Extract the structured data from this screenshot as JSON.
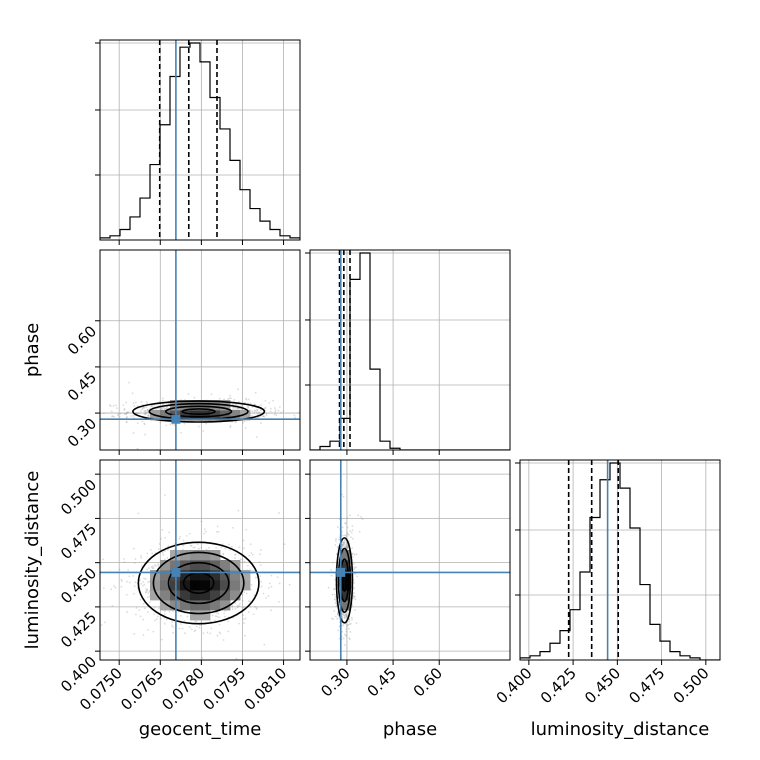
{
  "chart_data": {
    "type": "corner",
    "parameters": [
      "geocent_time",
      "phase",
      "luminosity_distance"
    ],
    "axis_labels": {
      "geocent_time": "geocent_time",
      "phase": "phase",
      "luminosity_distance": "luminosity_distance"
    },
    "ranges": {
      "geocent_time": [
        0.0743,
        0.0816
      ],
      "phase": [
        0.18,
        0.83
      ],
      "luminosity_distance": [
        0.395,
        0.508
      ]
    },
    "ticks": {
      "geocent_time": [
        "0.0750",
        "0.0765",
        "0.0780",
        "0.0795",
        "0.0810"
      ],
      "phase": [
        "0.30",
        "0.45",
        "0.60"
      ],
      "luminosity_distance": [
        "0.400",
        "0.425",
        "0.450",
        "0.475",
        "0.500"
      ]
    },
    "truths": {
      "geocent_time": 0.07707,
      "phase": 0.28,
      "luminosity_distance": 0.4445
    },
    "truth_color": "#4682b4",
    "quantiles": {
      "geocent_time": [
        0.07648,
        0.07754,
        0.07857
      ],
      "phase": [
        0.276,
        0.29,
        0.31
      ],
      "luminosity_distance": [
        0.4225,
        0.4355,
        0.4505
      ]
    },
    "histograms": {
      "geocent_time": {
        "edges_start": 0.0743,
        "edges_end": 0.0816,
        "counts": [
          1,
          2,
          5,
          11,
          20,
          36,
          55,
          78,
          92,
          94,
          85,
          68,
          53,
          38,
          24,
          15,
          9,
          5,
          2,
          1
        ]
      },
      "phase": {
        "edges_start": 0.18,
        "edges_end": 0.83,
        "counts": [
          0,
          2,
          5,
          18,
          97,
          112,
          46,
          5,
          1,
          0,
          0,
          0,
          0,
          0,
          0,
          0,
          0,
          0,
          0,
          0
        ]
      },
      "luminosity_distance": {
        "edges_start": 0.395,
        "edges_end": 0.508,
        "counts": [
          1,
          2,
          4,
          8,
          14,
          24,
          42,
          68,
          86,
          94,
          82,
          63,
          36,
          17,
          9,
          4,
          2,
          1,
          0,
          0
        ]
      }
    },
    "densities_2d": [
      {
        "x": "geocent_time",
        "y": "phase",
        "mean": [
          0.0779,
          0.305
        ],
        "std": [
          0.0012,
          0.017
        ]
      },
      {
        "x": "geocent_time",
        "y": "luminosity_distance",
        "mean": [
          0.0779,
          0.4385
        ],
        "std": [
          0.0011,
          0.0115
        ]
      },
      {
        "x": "phase",
        "y": "luminosity_distance",
        "mean": [
          0.292,
          0.44
        ],
        "std": [
          0.013,
          0.012
        ]
      }
    ],
    "grid": true,
    "hist_color": "#000000",
    "density_color": "#000000"
  }
}
